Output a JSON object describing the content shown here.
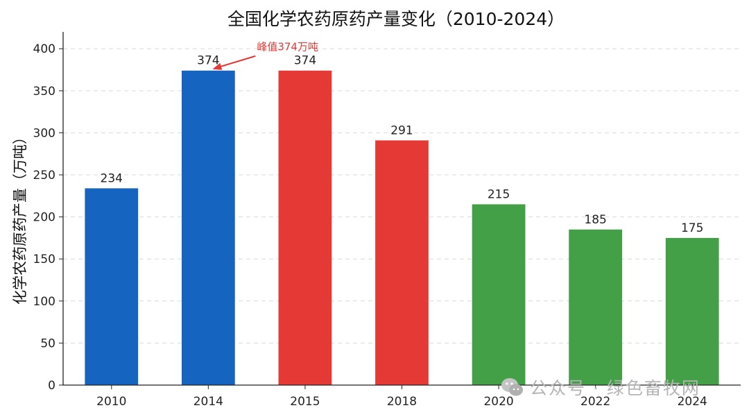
{
  "chart_data": {
    "type": "bar",
    "title": "全国化学农药原药产量变化（2010-2024）",
    "ylabel": "化学农药原药产量（万吨）",
    "xlabel": "",
    "categories": [
      "2010",
      "2014",
      "2015",
      "2018",
      "2020",
      "2022",
      "2024"
    ],
    "values": [
      234,
      374,
      374,
      291,
      215,
      185,
      175
    ],
    "bar_colors": [
      "#1565c0",
      "#1565c0",
      "#e53935",
      "#e53935",
      "#43a047",
      "#43a047",
      "#43a047"
    ],
    "ylim": [
      0,
      420
    ],
    "yticks": [
      0,
      50,
      100,
      150,
      200,
      250,
      300,
      350,
      400
    ],
    "grid": "horizontal-dashed",
    "annotation": {
      "text": "峰值374万吨",
      "target_category": "2014",
      "target_value": 374,
      "color": "#e53935"
    }
  },
  "watermark": {
    "text": "公众号 · 绿色畜牧网",
    "icon": "wechat-icon"
  }
}
